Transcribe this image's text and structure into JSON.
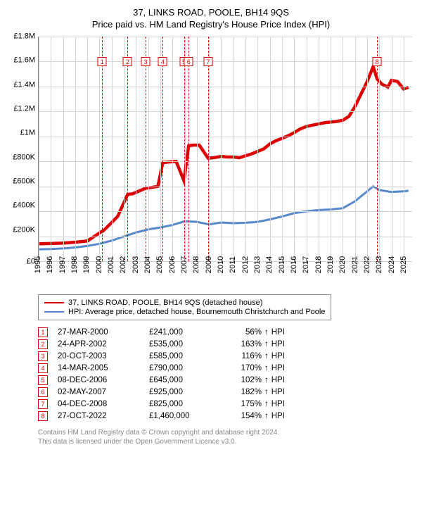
{
  "title_line1": "37, LINKS ROAD, POOLE, BH14 9QS",
  "title_line2": "Price paid vs. HM Land Registry's House Price Index (HPI)",
  "chart": {
    "type": "line",
    "background_color": "#ffffff",
    "axis_color": "#808080",
    "grid_color": "#d3d3d3",
    "y": {
      "min": 0,
      "max": 1800000,
      "step": 200000,
      "labels": [
        "£1.8M",
        "£1.6M",
        "£1.4M",
        "£1.2M",
        "£1M",
        "£800K",
        "£600K",
        "£400K",
        "£200K",
        "£0"
      ]
    },
    "x": {
      "min": 1995,
      "max": 2025.7,
      "labels": [
        "1995",
        "1996",
        "1997",
        "1998",
        "1999",
        "2000",
        "2001",
        "2002",
        "2003",
        "2004",
        "2005",
        "2006",
        "2007",
        "2008",
        "2009",
        "2010",
        "2011",
        "2012",
        "2013",
        "2014",
        "2015",
        "2016",
        "2017",
        "2018",
        "2019",
        "2020",
        "2021",
        "2022",
        "2023",
        "2024",
        "2025"
      ]
    },
    "series": [
      {
        "name": "property",
        "label": "37, LINKS ROAD, POOLE, BH14 9QS (detached house)",
        "color": "#dd0000",
        "line_width": 1.5,
        "points": [
          [
            1995.0,
            140000
          ],
          [
            1996.0,
            142000
          ],
          [
            1997.0,
            145000
          ],
          [
            1998.0,
            152000
          ],
          [
            1999.0,
            162000
          ],
          [
            2000.22,
            241000
          ],
          [
            2000.3,
            243000
          ],
          [
            2001.0,
            310000
          ],
          [
            2001.5,
            360000
          ],
          [
            2002.31,
            535000
          ],
          [
            2002.7,
            540000
          ],
          [
            2003.2,
            560000
          ],
          [
            2003.79,
            585000
          ],
          [
            2004.2,
            590000
          ],
          [
            2004.8,
            600000
          ],
          [
            2005.2,
            790000
          ],
          [
            2005.7,
            795000
          ],
          [
            2006.3,
            800000
          ],
          [
            2006.94,
            645000
          ],
          [
            2007.33,
            925000
          ],
          [
            2007.7,
            930000
          ],
          [
            2008.2,
            930000
          ],
          [
            2008.93,
            825000
          ],
          [
            2009.4,
            830000
          ],
          [
            2010.0,
            840000
          ],
          [
            2010.5,
            835000
          ],
          [
            2011.0,
            835000
          ],
          [
            2011.5,
            830000
          ],
          [
            2012.0,
            845000
          ],
          [
            2012.5,
            860000
          ],
          [
            2013.0,
            880000
          ],
          [
            2013.5,
            900000
          ],
          [
            2014.0,
            940000
          ],
          [
            2014.5,
            965000
          ],
          [
            2015.0,
            985000
          ],
          [
            2015.5,
            1005000
          ],
          [
            2016.0,
            1030000
          ],
          [
            2016.5,
            1060000
          ],
          [
            2017.0,
            1080000
          ],
          [
            2017.5,
            1090000
          ],
          [
            2018.0,
            1100000
          ],
          [
            2018.5,
            1110000
          ],
          [
            2019.0,
            1115000
          ],
          [
            2019.5,
            1120000
          ],
          [
            2020.0,
            1130000
          ],
          [
            2020.5,
            1160000
          ],
          [
            2021.0,
            1240000
          ],
          [
            2021.5,
            1340000
          ],
          [
            2022.0,
            1440000
          ],
          [
            2022.5,
            1560000
          ],
          [
            2022.82,
            1460000
          ],
          [
            2023.2,
            1420000
          ],
          [
            2023.7,
            1395000
          ],
          [
            2024.0,
            1450000
          ],
          [
            2024.5,
            1440000
          ],
          [
            2025.0,
            1380000
          ],
          [
            2025.4,
            1395000
          ]
        ]
      },
      {
        "name": "hpi",
        "label": "HPI: Average price, detached house, Bournemouth Christchurch and Poole",
        "color": "#5588cc",
        "line_width": 1,
        "points": [
          [
            1995.0,
            95000
          ],
          [
            1996.0,
            97000
          ],
          [
            1997.0,
            102000
          ],
          [
            1998.0,
            110000
          ],
          [
            1999.0,
            122000
          ],
          [
            2000.0,
            140000
          ],
          [
            2001.0,
            165000
          ],
          [
            2002.0,
            198000
          ],
          [
            2003.0,
            230000
          ],
          [
            2004.0,
            255000
          ],
          [
            2005.0,
            270000
          ],
          [
            2006.0,
            290000
          ],
          [
            2007.0,
            320000
          ],
          [
            2008.0,
            315000
          ],
          [
            2009.0,
            295000
          ],
          [
            2010.0,
            310000
          ],
          [
            2011.0,
            305000
          ],
          [
            2012.0,
            308000
          ],
          [
            2013.0,
            315000
          ],
          [
            2014.0,
            335000
          ],
          [
            2015.0,
            358000
          ],
          [
            2016.0,
            385000
          ],
          [
            2017.0,
            400000
          ],
          [
            2018.0,
            410000
          ],
          [
            2019.0,
            415000
          ],
          [
            2020.0,
            425000
          ],
          [
            2021.0,
            480000
          ],
          [
            2022.0,
            560000
          ],
          [
            2022.5,
            600000
          ],
          [
            2023.0,
            570000
          ],
          [
            2024.0,
            555000
          ],
          [
            2025.0,
            560000
          ],
          [
            2025.4,
            565000
          ]
        ]
      }
    ],
    "events": [
      {
        "n": "1",
        "x": 2000.22,
        "date": "27-MAR-2000",
        "price": "£241,000",
        "diff": "56%",
        "arrow": "↑",
        "suffix": "HPI"
      },
      {
        "n": "2",
        "x": 2002.31,
        "date": "24-APR-2002",
        "price": "£535,000",
        "diff": "163%",
        "arrow": "↑",
        "suffix": "HPI"
      },
      {
        "n": "3",
        "x": 2003.79,
        "date": "20-OCT-2003",
        "price": "£585,000",
        "diff": "116%",
        "arrow": "↑",
        "suffix": "HPI"
      },
      {
        "n": "4",
        "x": 2005.2,
        "date": "14-MAR-2005",
        "price": "£790,000",
        "diff": "170%",
        "arrow": "↑",
        "suffix": "HPI"
      },
      {
        "n": "5",
        "x": 2006.94,
        "date": "08-DEC-2006",
        "price": "£645,000",
        "diff": "102%",
        "arrow": "↑",
        "suffix": "HPI"
      },
      {
        "n": "6",
        "x": 2007.33,
        "date": "02-MAY-2007",
        "price": "£925,000",
        "diff": "182%",
        "arrow": "↑",
        "suffix": "HPI"
      },
      {
        "n": "7",
        "x": 2008.93,
        "date": "04-DEC-2008",
        "price": "£825,000",
        "diff": "175%",
        "arrow": "↑",
        "suffix": "HPI"
      },
      {
        "n": "8",
        "x": 2022.82,
        "date": "27-OCT-2022",
        "price": "£1,460,000",
        "diff": "154%",
        "arrow": "↑",
        "suffix": "HPI"
      }
    ],
    "event_marker_color": "#dd0000",
    "event_line_color": "#dd0000",
    "marker_top_y": 1600000
  },
  "footer_line1": "Contains HM Land Registry data © Crown copyright and database right 2024.",
  "footer_line2": "This data is licensed under the Open Government Licence v3.0."
}
